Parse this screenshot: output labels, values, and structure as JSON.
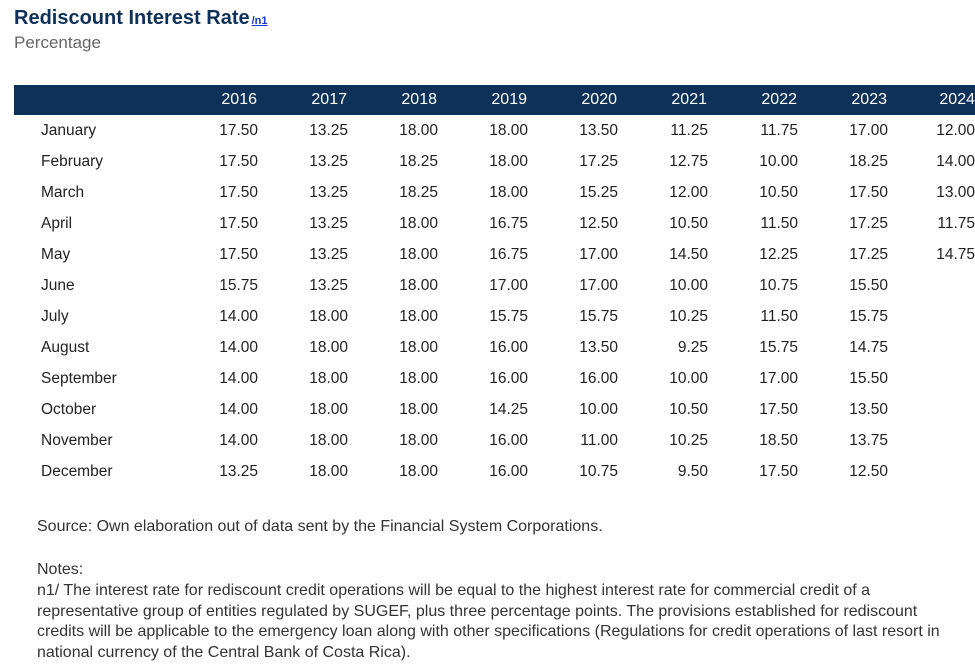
{
  "header": {
    "title": "Rediscount Interest Rate",
    "note_ref": "/n1",
    "subtitle": "Percentage"
  },
  "table": {
    "columns": [
      "2016",
      "2017",
      "2018",
      "2019",
      "2020",
      "2021",
      "2022",
      "2023",
      "2024"
    ],
    "rows": [
      {
        "month": "January",
        "values": [
          "17.50",
          "13.25",
          "18.00",
          "18.00",
          "13.50",
          "11.25",
          "11.75",
          "17.00",
          "12.00"
        ]
      },
      {
        "month": "February",
        "values": [
          "17.50",
          "13.25",
          "18.25",
          "18.00",
          "17.25",
          "12.75",
          "10.00",
          "18.25",
          "14.00"
        ]
      },
      {
        "month": "March",
        "values": [
          "17.50",
          "13.25",
          "18.25",
          "18.00",
          "15.25",
          "12.00",
          "10.50",
          "17.50",
          "13.00"
        ]
      },
      {
        "month": "April",
        "values": [
          "17.50",
          "13.25",
          "18.00",
          "16.75",
          "12.50",
          "10.50",
          "11.50",
          "17.25",
          "11.75"
        ]
      },
      {
        "month": "May",
        "values": [
          "17.50",
          "13.25",
          "18.00",
          "16.75",
          "17.00",
          "14.50",
          "12.25",
          "17.25",
          "14.75"
        ]
      },
      {
        "month": "June",
        "values": [
          "15.75",
          "13.25",
          "18.00",
          "17.00",
          "17.00",
          "10.00",
          "10.75",
          "15.50",
          ""
        ]
      },
      {
        "month": "July",
        "values": [
          "14.00",
          "18.00",
          "18.00",
          "15.75",
          "15.75",
          "10.25",
          "11.50",
          "15.75",
          ""
        ]
      },
      {
        "month": "August",
        "values": [
          "14.00",
          "18.00",
          "18.00",
          "16.00",
          "13.50",
          "9.25",
          "15.75",
          "14.75",
          ""
        ]
      },
      {
        "month": "September",
        "values": [
          "14.00",
          "18.00",
          "18.00",
          "16.00",
          "16.00",
          "10.00",
          "17.00",
          "15.50",
          ""
        ]
      },
      {
        "month": "October",
        "values": [
          "14.00",
          "18.00",
          "18.00",
          "14.25",
          "10.00",
          "10.50",
          "17.50",
          "13.50",
          ""
        ]
      },
      {
        "month": "November",
        "values": [
          "14.00",
          "18.00",
          "18.00",
          "16.00",
          "11.00",
          "10.25",
          "18.50",
          "13.75",
          ""
        ]
      },
      {
        "month": "December",
        "values": [
          "13.25",
          "18.00",
          "18.00",
          "16.00",
          "10.75",
          "9.50",
          "17.50",
          "12.50",
          ""
        ]
      }
    ]
  },
  "footer": {
    "source": "Source: Own elaboration out of data sent by the Financial System Corporations.",
    "notes_label": "Notes:",
    "note_n1": "n1/ The interest rate for rediscount credit operations will be equal to the highest interest rate for commercial credit of a representative group of entities regulated by SUGEF, plus three percentage points. The provisions established for rediscount credits will be applicable to the emergency loan along with other specifications (Regulations for credit operations of last resort in national currency of the Central Bank of Costa Rica)."
  },
  "colors": {
    "title": "#0e3159",
    "header_bg": "#0e3159",
    "header_text": "#ffffff",
    "link": "#1a35c9"
  }
}
